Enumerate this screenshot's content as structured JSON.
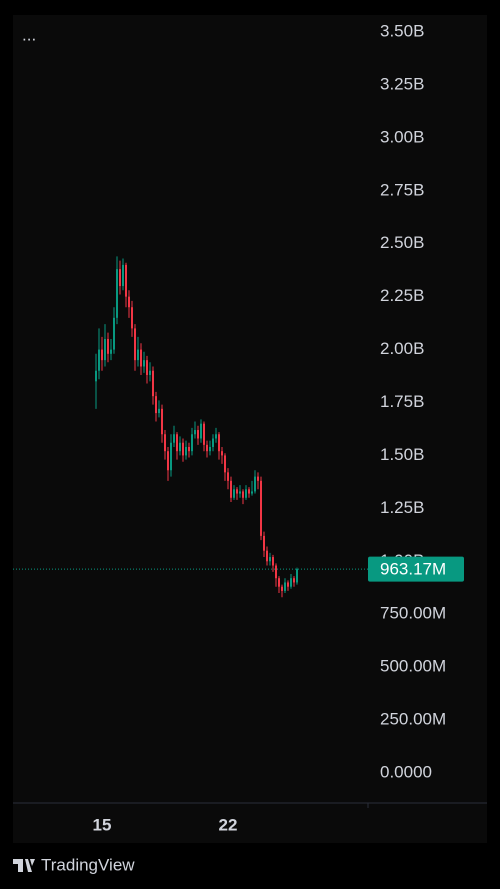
{
  "chart_data": {
    "type": "candlestick",
    "categories": [
      null,
      null,
      "15",
      null,
      null,
      null,
      null,
      null,
      null,
      null,
      null,
      null,
      null,
      null,
      null,
      null,
      null,
      null,
      null,
      null,
      null,
      null,
      null,
      null,
      null,
      null,
      null,
      null,
      null,
      null,
      null,
      null,
      null,
      null,
      null,
      null,
      null,
      null,
      null,
      null,
      null,
      null,
      null,
      null,
      "22",
      null,
      null,
      null,
      null,
      null,
      null,
      null,
      null,
      null,
      null,
      null,
      null,
      null,
      null,
      null,
      null,
      null,
      null,
      null,
      null,
      null,
      null,
      null
    ],
    "open": [
      1850,
      1900,
      2000,
      1950,
      2050,
      1980,
      2000,
      2150,
      2380,
      2300,
      2400,
      2250,
      2200,
      2100,
      1950,
      2000,
      1920,
      1950,
      1880,
      1900,
      1780,
      1700,
      1720,
      1600,
      1520,
      1430,
      1560,
      1600,
      1520,
      1560,
      1500,
      1540,
      1520,
      1600,
      1620,
      1580,
      1650,
      1550,
      1520,
      1540,
      1580,
      1600,
      1520,
      1500,
      1420,
      1380,
      1300,
      1340,
      1320,
      1330,
      1300,
      1340,
      1320,
      1330,
      1400,
      1380,
      1120,
      1050,
      1000,
      1020,
      980,
      920,
      880,
      860,
      900,
      880,
      920,
      900
    ],
    "high": [
      1980,
      2100,
      2060,
      2120,
      2080,
      2050,
      2200,
      2440,
      2420,
      2430,
      2410,
      2280,
      2230,
      2120,
      2060,
      2030,
      1990,
      1970,
      1940,
      1920,
      1800,
      1760,
      1740,
      1620,
      1540,
      1600,
      1640,
      1610,
      1590,
      1580,
      1570,
      1560,
      1630,
      1660,
      1640,
      1670,
      1660,
      1570,
      1570,
      1600,
      1630,
      1610,
      1540,
      1510,
      1440,
      1400,
      1360,
      1350,
      1360,
      1340,
      1360,
      1350,
      1380,
      1430,
      1420,
      1400,
      1140,
      1070,
      1040,
      1030,
      990,
      930,
      890,
      920,
      910,
      940,
      930,
      970
    ],
    "low": [
      1720,
      1860,
      1900,
      1920,
      1940,
      1950,
      1980,
      2120,
      2260,
      2280,
      2200,
      2150,
      2060,
      1900,
      1920,
      1880,
      1890,
      1840,
      1850,
      1740,
      1660,
      1680,
      1560,
      1480,
      1380,
      1400,
      1540,
      1480,
      1500,
      1470,
      1480,
      1490,
      1500,
      1580,
      1550,
      1560,
      1520,
      1490,
      1500,
      1520,
      1560,
      1480,
      1460,
      1380,
      1340,
      1280,
      1290,
      1290,
      1300,
      1270,
      1290,
      1300,
      1310,
      1320,
      1340,
      1100,
      1020,
      980,
      980,
      950,
      880,
      850,
      830,
      850,
      860,
      870,
      880,
      890
    ],
    "close": [
      1900,
      2000,
      1950,
      2050,
      1980,
      2000,
      2150,
      2380,
      2300,
      2400,
      2250,
      2200,
      2100,
      1950,
      2000,
      1920,
      1950,
      1880,
      1900,
      1780,
      1700,
      1720,
      1600,
      1520,
      1430,
      1560,
      1600,
      1520,
      1560,
      1500,
      1540,
      1520,
      1600,
      1620,
      1580,
      1650,
      1550,
      1520,
      1540,
      1580,
      1600,
      1520,
      1500,
      1420,
      1380,
      1300,
      1340,
      1320,
      1330,
      1300,
      1340,
      1320,
      1330,
      1400,
      1380,
      1120,
      1050,
      1000,
      1020,
      980,
      920,
      880,
      860,
      900,
      880,
      920,
      900,
      963.17
    ],
    "up_color": "#089981",
    "down_color": "#f23645",
    "ylim": [
      0,
      3500
    ],
    "yticks": [
      {
        "value": 3500,
        "label": "3.50B"
      },
      {
        "value": 3250,
        "label": "3.25B"
      },
      {
        "value": 3000,
        "label": "3.00B"
      },
      {
        "value": 2750,
        "label": "2.75B"
      },
      {
        "value": 2500,
        "label": "2.50B"
      },
      {
        "value": 2250,
        "label": "2.25B"
      },
      {
        "value": 2000,
        "label": "2.00B"
      },
      {
        "value": 1750,
        "label": "1.75B"
      },
      {
        "value": 1500,
        "label": "1.50B"
      },
      {
        "value": 1250,
        "label": "1.25B"
      },
      {
        "value": 1000,
        "label": "1.00B"
      },
      {
        "value": 750,
        "label": "750.00M"
      },
      {
        "value": 500,
        "label": "500.00M"
      },
      {
        "value": 250,
        "label": "250.00M"
      },
      {
        "value": 0,
        "label": "0.0000"
      }
    ],
    "last_price": {
      "value": 963.17,
      "label": "963.17M"
    },
    "grid": false
  },
  "menu": "...",
  "brand": "TradingView"
}
